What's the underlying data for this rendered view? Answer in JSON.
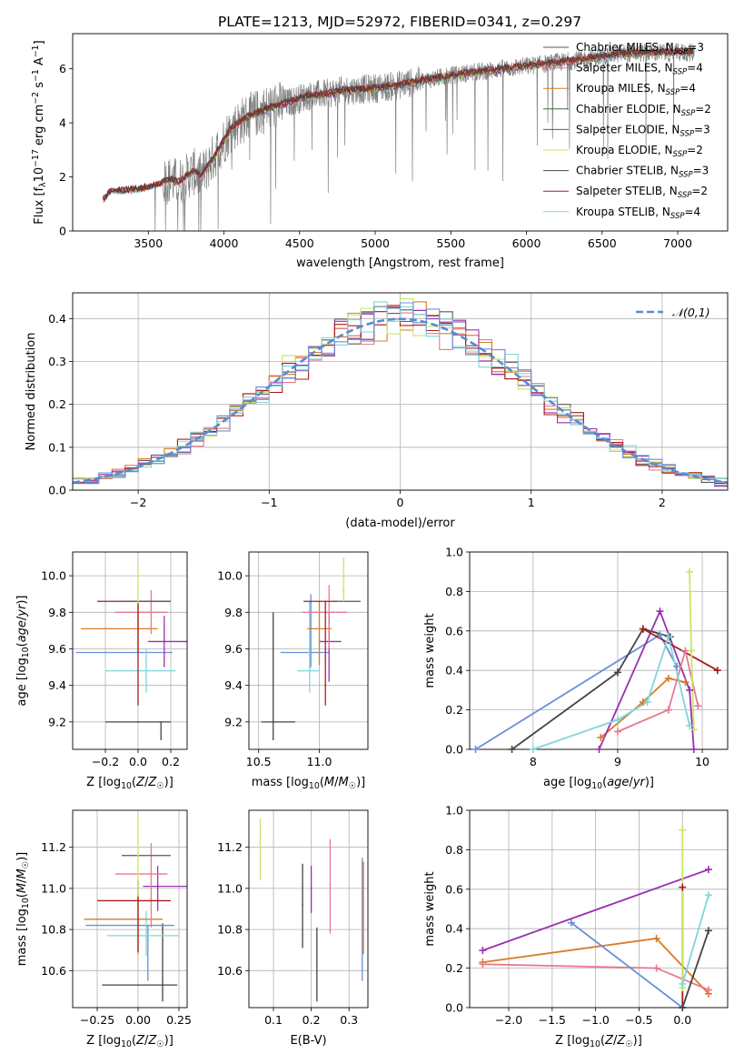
{
  "figure": {
    "title": "PLATE=1213, MJD=52972, FIBERID=0341, z=0.297"
  },
  "colors": {
    "Chabrier MILES": "#5a5a5a",
    "Salpeter MILES": "#e8798f",
    "Kroupa MILES": "#d97b27",
    "Chabrier ELODIE": "#3d6d3d",
    "Salpeter ELODIE": "#9a2fb0",
    "Kroupa ELODIE": "#c6e66a",
    "Chabrier STELIB": "#444444",
    "Salpeter STELIB": "#a81c1c",
    "Kroupa STELIB": "#7fd6dc",
    "blue": "#6a8fd6",
    "data": "#808080"
  },
  "chart_data": [
    {
      "id": "spectrum",
      "type": "line",
      "xlabel": "wavelength [Angstrom, rest frame]",
      "ylabel": "Flux [f_λ 10^-17 erg cm^-2 s^-1 A^-1]",
      "xlim": [
        3000,
        7330
      ],
      "ylim": [
        0,
        7.3
      ],
      "xticks": [
        3500,
        4000,
        4500,
        5000,
        5500,
        6000,
        6500,
        7000
      ],
      "yticks": [
        0,
        2,
        4,
        6
      ],
      "legend_position": "top-right",
      "legend": [
        {
          "name": "Chabrier MILES",
          "nssp": "3"
        },
        {
          "name": "Salpeter MILES",
          "nssp": "4"
        },
        {
          "name": "Kroupa MILES",
          "nssp": "4"
        },
        {
          "name": "Chabrier ELODIE",
          "nssp": "2"
        },
        {
          "name": "Salpeter ELODIE",
          "nssp": "3"
        },
        {
          "name": "Kroupa ELODIE",
          "nssp": "2"
        },
        {
          "name": "Chabrier STELIB",
          "nssp": "3"
        },
        {
          "name": "Salpeter STELIB",
          "nssp": "2"
        },
        {
          "name": "Kroupa STELIB",
          "nssp": "4"
        }
      ],
      "continuum": {
        "x": [
          3200,
          3250,
          3350,
          3450,
          3550,
          3650,
          3700,
          3800,
          3850,
          3950,
          4050,
          4150,
          4300,
          4450,
          4550,
          4650,
          4800,
          4950,
          5100,
          5250,
          5400,
          5550,
          5700,
          5850,
          6000,
          6150,
          6300,
          6450,
          6600,
          6800,
          7000,
          7100
        ],
        "y": [
          1.15,
          1.45,
          1.5,
          1.55,
          1.7,
          1.9,
          1.8,
          2.2,
          2.0,
          2.9,
          3.8,
          4.2,
          4.55,
          4.8,
          5.0,
          5.05,
          5.2,
          5.25,
          5.35,
          5.5,
          5.65,
          5.8,
          5.9,
          6.0,
          6.1,
          6.2,
          6.3,
          6.4,
          6.55,
          6.6,
          6.6,
          6.6
        ]
      }
    },
    {
      "id": "residuals",
      "type": "histogram",
      "xlabel": "(data-model)/error",
      "ylabel": "Normed distribution",
      "xlim": [
        -2.5,
        2.5
      ],
      "ylim": [
        0,
        0.46
      ],
      "xticks": [
        -2,
        -1,
        0,
        1,
        2
      ],
      "yticks": [
        0.0,
        0.1,
        0.2,
        0.3,
        0.4
      ],
      "bin_width": 0.1,
      "legend": "𝒩(0,1)",
      "legend_position": "top-right"
    },
    {
      "id": "age_vs_Z",
      "type": "errorbar",
      "xlabel": "Z [log10(Z/Z☉)]",
      "ylabel": "age  [log10(age/yr)]",
      "xlim": [
        -0.4,
        0.3
      ],
      "ylim": [
        9.05,
        10.13
      ],
      "xticks": [
        -0.2,
        0.0,
        0.2
      ],
      "yticks": [
        9.2,
        9.4,
        9.6,
        9.8,
        10.0
      ],
      "points": [
        {
          "c": "Chabrier STELIB",
          "x": 0.0,
          "xerr": [
            0.2,
            0.2
          ],
          "y": 9.2,
          "yerr": [
            0.0,
            0.0
          ]
        },
        {
          "c": "Chabrier STELIB",
          "x": 0.14,
          "xerr": [
            0.0,
            0.0
          ],
          "y": 9.2,
          "yerr": [
            0.1,
            0.0
          ]
        },
        {
          "c": "blue",
          "x": -0.03,
          "xerr": [
            0.35,
            0.24
          ],
          "y": 9.58,
          "yerr": [
            0.0,
            0.0
          ]
        },
        {
          "c": "Kroupa STELIB",
          "x": 0.05,
          "xerr": [
            0.25,
            0.18
          ],
          "y": 9.48,
          "yerr": [
            0.12,
            0.12
          ]
        },
        {
          "c": "Salpeter ELODIE",
          "x": 0.16,
          "xerr": [
            0.1,
            0.14
          ],
          "y": 9.64,
          "yerr": [
            0.14,
            0.14
          ]
        },
        {
          "c": "Kroupa MILES",
          "x": 0.0,
          "xerr": [
            0.35,
            0.12
          ],
          "y": 9.71,
          "yerr": [
            0.13,
            0.13
          ]
        },
        {
          "c": "Salpeter MILES",
          "x": 0.08,
          "xerr": [
            0.22,
            0.1
          ],
          "y": 9.8,
          "yerr": [
            0.12,
            0.12
          ]
        },
        {
          "c": "Salpeter STELIB",
          "x": 0.0,
          "xerr": [
            0.25,
            0.2
          ],
          "y": 9.86,
          "yerr": [
            0.57,
            0.0
          ]
        },
        {
          "c": "Chabrier MILES",
          "x": 0.1,
          "xerr": [
            0.2,
            0.1
          ],
          "y": 9.86,
          "yerr": [
            0.0,
            0.0
          ]
        },
        {
          "c": "Kroupa ELODIE",
          "x": 0.0,
          "xerr": [
            0.0,
            0.0
          ],
          "y": 9.95,
          "yerr": [
            0.1,
            0.1
          ]
        }
      ]
    },
    {
      "id": "age_vs_mass",
      "type": "errorbar",
      "xlabel": "mass [log10(M/M☉)]",
      "ylabel": "",
      "xlim": [
        10.42,
        11.4
      ],
      "ylim": [
        9.05,
        10.13
      ],
      "xticks": [
        10.5,
        11.0
      ],
      "yticks": [
        9.2,
        9.4,
        9.6,
        9.8,
        10.0
      ],
      "points": [
        {
          "c": "Chabrier STELIB",
          "x": 10.62,
          "xerr": [
            0.1,
            0.18
          ],
          "y": 9.2,
          "yerr": [
            0.1,
            0.6
          ]
        },
        {
          "c": "blue",
          "x": 10.93,
          "xerr": [
            0.25,
            0.15
          ],
          "y": 9.58,
          "yerr": [
            0.08,
            0.32
          ]
        },
        {
          "c": "Kroupa STELIB",
          "x": 10.92,
          "xerr": [
            0.1,
            0.08
          ],
          "y": 9.48,
          "yerr": [
            0.12,
            0.38
          ]
        },
        {
          "c": "Salpeter ELODIE",
          "x": 11.08,
          "xerr": [
            0.08,
            0.1
          ],
          "y": 9.64,
          "yerr": [
            0.22,
            0.16
          ]
        },
        {
          "c": "Kroupa MILES",
          "x": 11.0,
          "xerr": [
            0.1,
            0.1
          ],
          "y": 9.71,
          "yerr": [
            0.2,
            0.15
          ]
        },
        {
          "c": "Salpeter MILES",
          "x": 11.08,
          "xerr": [
            0.22,
            0.15
          ],
          "y": 9.8,
          "yerr": [
            0.2,
            0.15
          ]
        },
        {
          "c": "Salpeter STELIB",
          "x": 11.05,
          "xerr": [
            0.18,
            0.1
          ],
          "y": 9.86,
          "yerr": [
            0.57,
            0.0
          ]
        },
        {
          "c": "Chabrier MILES",
          "x": 11.22,
          "xerr": [
            0.1,
            0.12
          ],
          "y": 9.86,
          "yerr": [
            0.0,
            0.0
          ]
        },
        {
          "c": "Kroupa ELODIE",
          "x": 11.2,
          "xerr": [
            0.01,
            0.01
          ],
          "y": 9.92,
          "yerr": [
            0.06,
            0.18
          ]
        }
      ]
    },
    {
      "id": "weight_vs_age",
      "type": "line",
      "xlabel": "age  [log10(age/yr)]",
      "ylabel": "mass weight",
      "xlim": [
        7.25,
        10.3
      ],
      "ylim": [
        0.0,
        1.0
      ],
      "xticks": [
        8,
        9,
        10
      ],
      "yticks": [
        0.0,
        0.2,
        0.4,
        0.6,
        0.8,
        1.0
      ],
      "series": [
        {
          "c": "blue",
          "x": [
            7.32,
            9.5,
            9.7
          ],
          "y": [
            0.0,
            0.58,
            0.42
          ]
        },
        {
          "c": "Chabrier STELIB",
          "x": [
            7.75,
            9.0,
            9.3,
            9.62
          ],
          "y": [
            0.0,
            0.39,
            0.61,
            0.57
          ]
        },
        {
          "c": "Kroupa MILES",
          "x": [
            8.8,
            9.3,
            9.6,
            9.8
          ],
          "y": [
            0.06,
            0.24,
            0.36,
            0.34
          ]
        },
        {
          "c": "Salpeter ELODIE",
          "x": [
            8.78,
            9.5,
            9.85,
            9.9
          ],
          "y": [
            0.0,
            0.7,
            0.3,
            0.0
          ]
        },
        {
          "c": "Salpeter STELIB",
          "x": [
            9.3,
            10.18
          ],
          "y": [
            0.61,
            0.4
          ]
        },
        {
          "c": "Salpeter MILES",
          "x": [
            9.0,
            9.6,
            9.8,
            9.95
          ],
          "y": [
            0.09,
            0.2,
            0.5,
            0.22
          ]
        },
        {
          "c": "Kroupa STELIB",
          "x": [
            8.0,
            9.0,
            9.35,
            9.6,
            9.85
          ],
          "y": [
            0.0,
            0.15,
            0.24,
            0.57,
            0.12
          ]
        },
        {
          "c": "Kroupa ELODIE",
          "x": [
            9.85,
            9.87,
            9.9
          ],
          "y": [
            0.9,
            0.5,
            0.1
          ]
        }
      ]
    },
    {
      "id": "mass_vs_Z",
      "type": "errorbar",
      "xlabel": "Z [log10(Z/Z☉)]",
      "ylabel": "mass [log10(M/M☉)]",
      "xlim": [
        -0.4,
        0.3
      ],
      "ylim": [
        10.42,
        11.38
      ],
      "xticks": [
        -0.25,
        0.0,
        0.25
      ],
      "yticks": [
        10.6,
        10.8,
        11.0,
        11.2
      ],
      "points": [
        {
          "c": "Chabrier STELIB",
          "x": 0.0,
          "xerr": [
            0.22,
            0.24
          ],
          "y": 10.53,
          "yerr": [
            0.0,
            0.0
          ]
        },
        {
          "c": "Chabrier STELIB",
          "x": 0.15,
          "xerr": [
            0.0,
            0.0
          ],
          "y": 10.53,
          "yerr": [
            0.08,
            0.3
          ]
        },
        {
          "c": "blue",
          "x": 0.06,
          "xerr": [
            0.38,
            0.16
          ],
          "y": 10.82,
          "yerr": [
            0.27,
            0.0
          ]
        },
        {
          "c": "Kroupa STELIB",
          "x": 0.05,
          "xerr": [
            0.24,
            0.2
          ],
          "y": 10.77,
          "yerr": [
            0.1,
            0.12
          ]
        },
        {
          "c": "Salpeter ELODIE",
          "x": 0.12,
          "xerr": [
            0.09,
            0.18
          ],
          "y": 11.01,
          "yerr": [
            0.12,
            0.1
          ]
        },
        {
          "c": "Kroupa MILES",
          "x": 0.0,
          "xerr": [
            0.33,
            0.15
          ],
          "y": 10.85,
          "yerr": [
            0.17,
            0.12
          ]
        },
        {
          "c": "Salpeter MILES",
          "x": 0.08,
          "xerr": [
            0.22,
            0.1
          ],
          "y": 11.07,
          "yerr": [
            0.26,
            0.15
          ]
        },
        {
          "c": "Salpeter STELIB",
          "x": 0.0,
          "xerr": [
            0.25,
            0.2
          ],
          "y": 10.94,
          "yerr": [
            0.25,
            0.1
          ]
        },
        {
          "c": "Chabrier MILES",
          "x": 0.1,
          "xerr": [
            0.2,
            0.1
          ],
          "y": 11.16,
          "yerr": [
            0.0,
            0.0
          ]
        },
        {
          "c": "Kroupa ELODIE",
          "x": 0.0,
          "xerr": [
            0.0,
            0.0
          ],
          "y": 11.16,
          "yerr": [
            0.2,
            0.2
          ]
        }
      ]
    },
    {
      "id": "mass_vs_EBV",
      "type": "errorbar",
      "xlabel": "E(B-V)",
      "ylabel": "",
      "xlim": [
        0.035,
        0.35
      ],
      "ylim": [
        10.42,
        11.38
      ],
      "xticks": [
        0.1,
        0.2,
        0.3
      ],
      "yticks": [
        10.6,
        10.8,
        11.0,
        11.2
      ],
      "points": [
        {
          "c": "Kroupa ELODIE",
          "x": 0.065,
          "y": 11.2,
          "yerr": [
            0.16,
            0.14
          ]
        },
        {
          "c": "Chabrier STELIB",
          "x": 0.177,
          "y": 10.92,
          "yerr": [
            0.21,
            0.2
          ]
        },
        {
          "c": "Salpeter ELODIE",
          "x": 0.2,
          "y": 11.0,
          "yerr": [
            0.12,
            0.11
          ]
        },
        {
          "c": "Chabrier STELIB",
          "x": 0.215,
          "y": 10.63,
          "yerr": [
            0.18,
            0.18
          ]
        },
        {
          "c": "Salpeter MILES",
          "x": 0.25,
          "y": 11.02,
          "yerr": [
            0.24,
            0.22
          ]
        },
        {
          "c": "blue",
          "x": 0.335,
          "y": 10.85,
          "yerr": [
            0.3,
            0.3
          ]
        },
        {
          "c": "Kroupa MILES",
          "x": 0.338,
          "y": 10.9,
          "yerr": [
            0.22,
            0.23
          ]
        }
      ]
    },
    {
      "id": "weight_vs_Z",
      "type": "line",
      "xlabel": "Z [log10(Z/Z☉)]",
      "ylabel": "mass weight",
      "xlim": [
        -2.45,
        0.52
      ],
      "ylim": [
        0.0,
        1.0
      ],
      "xticks": [
        -2.0,
        -1.5,
        -1.0,
        -0.5,
        0.0
      ],
      "yticks": [
        0.0,
        0.2,
        0.4,
        0.6,
        0.8,
        1.0
      ],
      "series": [
        {
          "c": "Salpeter ELODIE",
          "x": [
            -2.3,
            0.3
          ],
          "y": [
            0.29,
            0.7
          ]
        },
        {
          "c": "Kroupa MILES",
          "x": [
            -2.3,
            -0.3,
            0.3
          ],
          "y": [
            0.23,
            0.35,
            0.07
          ]
        },
        {
          "c": "Salpeter MILES",
          "x": [
            -2.3,
            -0.3,
            0.3
          ],
          "y": [
            0.22,
            0.2,
            0.09
          ]
        },
        {
          "c": "blue",
          "x": [
            -1.28,
            0.0
          ],
          "y": [
            0.43,
            0.0
          ]
        },
        {
          "c": "Salpeter STELIB",
          "x": [
            0.0,
            0.0
          ],
          "y": [
            0.0,
            0.61
          ]
        },
        {
          "c": "Chabrier STELIB",
          "x": [
            0.0,
            0.3
          ],
          "y": [
            0.0,
            0.39
          ]
        },
        {
          "c": "Kroupa ELODIE",
          "x": [
            0.0,
            0.0
          ],
          "y": [
            0.1,
            0.9
          ]
        },
        {
          "c": "Kroupa STELIB",
          "x": [
            0.0,
            0.3
          ],
          "y": [
            0.12,
            0.57
          ]
        }
      ]
    }
  ]
}
